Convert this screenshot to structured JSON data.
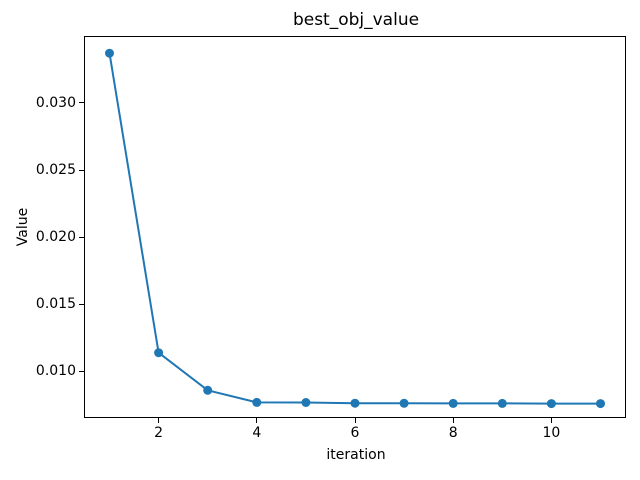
{
  "chart_data": {
    "type": "line",
    "title": "best_obj_value",
    "xlabel": "iteration",
    "ylabel": "Value",
    "series": [
      {
        "name": "best_obj_value",
        "x": [
          1,
          2,
          3,
          4,
          5,
          6,
          7,
          8,
          9,
          10,
          11
        ],
        "y": [
          0.0337,
          0.0114,
          0.0086,
          0.0077,
          0.00769,
          0.00764,
          0.00763,
          0.00762,
          0.00762,
          0.00761,
          0.00761
        ],
        "line_color": "#1f77b4",
        "marker": "circle"
      }
    ],
    "xlim": [
      0.5,
      11.5
    ],
    "ylim": [
      0.00661,
      0.03491
    ],
    "x_ticks": [
      2,
      4,
      6,
      8,
      10
    ],
    "x_tick_labels": [
      "2",
      "4",
      "6",
      "8",
      "10"
    ],
    "y_ticks": [
      0.01,
      0.015,
      0.02,
      0.025,
      0.03
    ],
    "y_tick_labels": [
      "0.010",
      "0.015",
      "0.020",
      "0.025",
      "0.030"
    ],
    "grid": false,
    "legend": "none",
    "colors": {
      "background": "#ffffff",
      "spine": "#000000",
      "text": "#000000",
      "line": "#1f77b4"
    }
  }
}
